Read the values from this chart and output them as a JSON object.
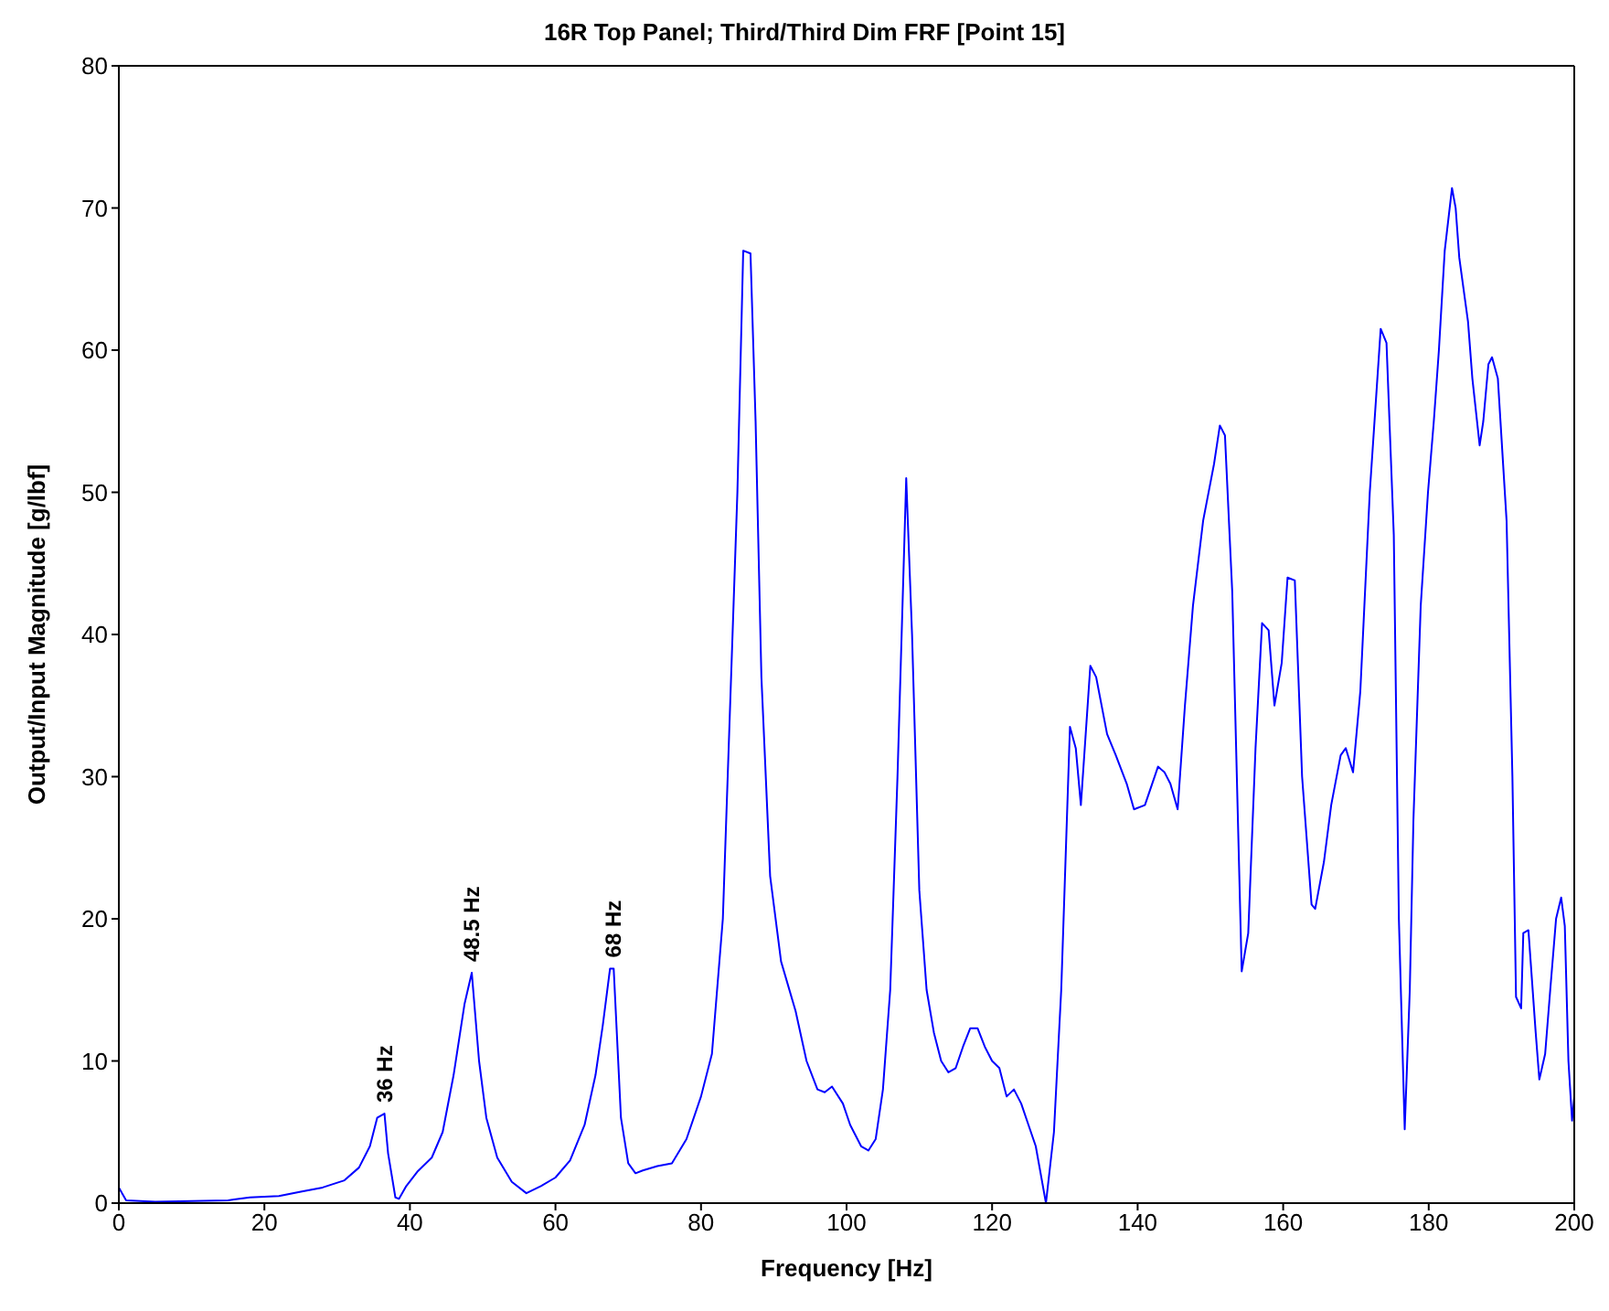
{
  "chart_data": {
    "type": "line",
    "title": "16R Top Panel; Third/Third Dim FRF [Point 15]",
    "xlabel": "Frequency [Hz]",
    "ylabel": "Output/Input Magnitude [g/lbf]",
    "x": [
      0,
      1,
      5,
      15,
      18,
      22,
      25,
      28,
      31,
      33,
      34.5,
      35.5,
      36.5,
      37,
      38,
      38.5,
      39.5,
      41,
      43,
      44.5,
      46,
      47.5,
      48.5,
      49.5,
      50.5,
      52,
      54,
      56,
      58,
      60,
      62,
      64,
      65.5,
      66.5,
      67.5,
      68,
      69,
      70,
      71,
      72,
      74,
      76,
      78,
      80,
      81.5,
      83,
      84,
      85,
      85.8,
      86.8,
      87.5,
      88.3,
      89.5,
      91,
      93,
      94.5,
      96,
      97,
      98,
      99.5,
      100.5,
      102,
      103,
      104,
      105,
      106,
      107,
      108.2,
      109,
      110,
      111,
      112,
      113,
      114,
      115,
      116,
      117,
      118,
      119,
      120,
      121,
      122,
      123,
      124,
      125,
      126,
      127.4,
      128.5,
      129.5,
      130.7,
      131.5,
      132.2,
      133.5,
      134.3,
      135.8,
      137,
      138.5,
      139.5,
      141,
      142.8,
      143.7,
      144.5,
      145.5,
      146.5,
      147.6,
      149,
      150.5,
      151.3,
      152,
      153,
      154.3,
      155.2,
      156.2,
      157.1,
      158,
      158.8,
      159.8,
      160.6,
      161.6,
      162.6,
      163.9,
      164.4,
      165.6,
      166.6,
      167.9,
      168.6,
      169.6,
      170.6,
      171.9,
      173.4,
      174.2,
      175.2,
      175.9,
      176.7,
      177.4,
      177.9,
      178.9,
      179.9,
      180.7,
      181.4,
      182.2,
      183.2,
      183.7,
      184.2,
      185.4,
      186,
      187,
      187.5,
      188.2,
      188.7,
      189.5,
      190.7,
      191.5,
      192,
      192.7,
      193,
      193.7,
      194.7,
      195.2,
      196,
      196.7,
      197.5,
      198.2,
      198.7,
      199.2,
      199.7,
      200
    ],
    "series": [
      {
        "color": "#0000ff",
        "values": [
          1.1,
          0.2,
          0.1,
          0.2,
          0.4,
          0.5,
          0.8,
          1.1,
          1.6,
          2.5,
          4,
          6,
          6.3,
          3.5,
          0.4,
          0.3,
          1.2,
          2.2,
          3.2,
          5,
          9,
          14,
          16.2,
          10,
          6,
          3.2,
          1.5,
          0.7,
          1.2,
          1.8,
          3,
          5.5,
          9,
          12.5,
          16.5,
          16.5,
          6,
          2.8,
          2.1,
          2.3,
          2.6,
          2.8,
          4.5,
          7.5,
          10.5,
          20,
          35,
          50,
          67,
          66.8,
          55,
          37,
          23,
          17,
          13.5,
          10,
          8,
          7.8,
          8.2,
          7,
          5.5,
          4,
          3.7,
          4.5,
          8,
          15,
          30,
          51,
          40,
          22,
          15,
          12,
          10,
          9.2,
          9.5,
          11,
          12.3,
          12.3,
          11,
          10,
          9.5,
          7.5,
          8,
          7,
          5.5,
          4,
          0,
          5,
          15,
          33.5,
          32,
          28,
          37.8,
          37,
          33,
          31.5,
          29.5,
          27.7,
          28,
          30.7,
          30.3,
          29.5,
          27.7,
          35,
          42,
          48,
          52,
          54.7,
          54,
          43,
          16.3,
          19,
          32,
          40.8,
          40.3,
          35,
          38,
          44,
          43.8,
          30,
          21,
          20.7,
          24,
          28,
          31.5,
          32,
          30.3,
          36,
          50,
          61.5,
          60.5,
          47,
          20,
          5.2,
          15,
          27,
          42,
          50,
          55,
          60,
          67,
          71.4,
          70,
          66.5,
          62,
          58,
          53.3,
          55,
          59,
          59.5,
          58,
          48,
          30,
          14.5,
          13.7,
          19,
          19.2,
          12,
          8.7,
          10.5,
          15,
          20,
          21.5,
          19.5,
          10,
          5.8,
          7.5
        ]
      }
    ],
    "xlim": [
      0,
      200
    ],
    "xticks": [
      0,
      20,
      40,
      60,
      80,
      100,
      120,
      140,
      160,
      180,
      200
    ],
    "ylim": [
      0,
      80
    ],
    "yticks": [
      0,
      10,
      20,
      30,
      40,
      50,
      60,
      70,
      80
    ],
    "grid": false,
    "legend": false,
    "marker": "none",
    "line_style": "solid",
    "annotations": [
      {
        "text": "36 Hz",
        "x": 36.5,
        "y": 6.3
      },
      {
        "text": "48.5 Hz",
        "x": 48.5,
        "y": 16.2
      },
      {
        "text": "68 Hz",
        "x": 68,
        "y": 16.5
      }
    ]
  }
}
